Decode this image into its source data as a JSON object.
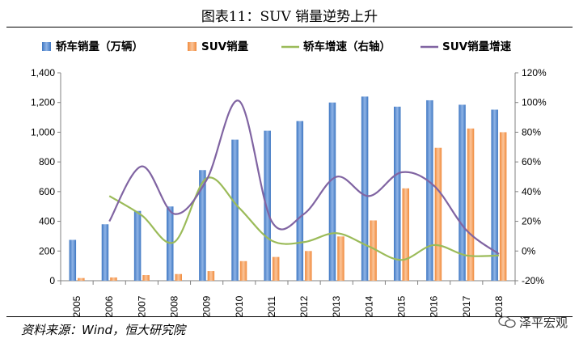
{
  "title": "图表11：SUV 销量逆势上升",
  "source": "资料来源：Wind，恒大研究院",
  "watermark": "泽平宏观",
  "colors": {
    "sedan_bar": "#3f77c2",
    "sedan_bar_light": "#8fb4e6",
    "suv_bar": "#f08a3c",
    "suv_bar_light": "#fbc59a",
    "sedan_growth": "#9bbb59",
    "suv_growth": "#8064a2",
    "axis": "#808080"
  },
  "chart_data": {
    "type": "bar",
    "categories": [
      "2005",
      "2006",
      "2007",
      "2008",
      "2009",
      "2010",
      "2011",
      "2012",
      "2013",
      "2014",
      "2015",
      "2016",
      "2017",
      "2018"
    ],
    "series": [
      {
        "name": "轿车销量（万辆）",
        "kind": "bar",
        "axis": "left",
        "values": [
          275,
          380,
          470,
          500,
          745,
          950,
          1010,
          1075,
          1200,
          1240,
          1172,
          1215,
          1185,
          1152
        ]
      },
      {
        "name": "SUV销量",
        "kind": "bar",
        "axis": "left",
        "values": [
          18,
          22,
          38,
          45,
          65,
          132,
          160,
          200,
          298,
          406,
          622,
          895,
          1025,
          1000
        ]
      },
      {
        "name": "轿车增速（右轴）",
        "kind": "line",
        "axis": "right",
        "x": [
          "2006",
          "2007",
          "2008",
          "2009",
          "2010",
          "2011",
          "2012",
          "2013",
          "2014",
          "2015",
          "2016",
          "2017",
          "2018"
        ],
        "values": [
          37,
          24,
          6,
          49,
          29,
          7,
          6,
          12,
          3,
          -6,
          4,
          -3,
          -3
        ]
      },
      {
        "name": "SUV销量增速",
        "kind": "line",
        "axis": "right",
        "x": [
          "2006",
          "2007",
          "2008",
          "2009",
          "2010",
          "2011",
          "2012",
          "2013",
          "2014",
          "2015",
          "2016",
          "2017",
          "2018"
        ],
        "values": [
          20,
          57,
          25,
          48,
          101,
          20,
          25,
          50,
          37,
          53,
          44,
          14,
          -2
        ]
      }
    ],
    "left_axis": {
      "min": 0,
      "max": 1400,
      "ticks": [
        "0",
        "200",
        "400",
        "600",
        "800",
        "1,000",
        "1,200",
        "1,400"
      ]
    },
    "right_axis": {
      "min": -20,
      "max": 120,
      "ticks": [
        "-20%",
        "0%",
        "20%",
        "40%",
        "60%",
        "80%",
        "100%",
        "120%"
      ]
    },
    "legend_position": "top"
  }
}
